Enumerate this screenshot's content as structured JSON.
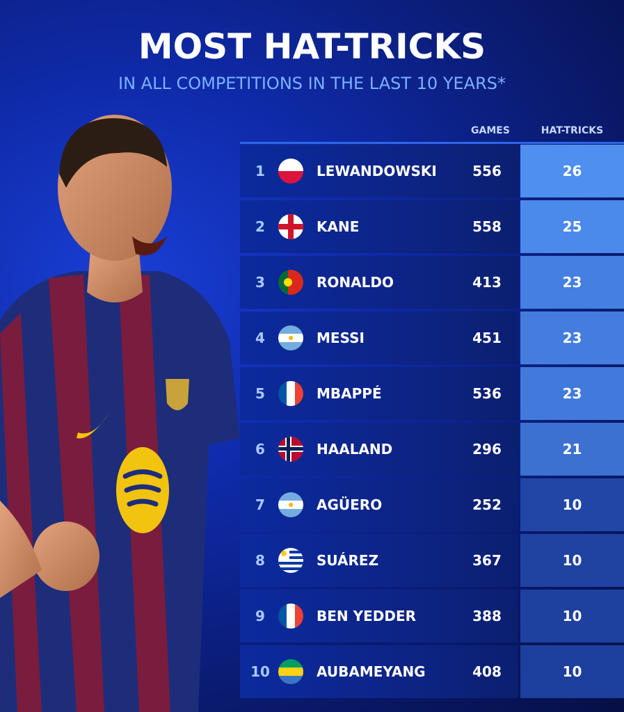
{
  "header": {
    "title": "MOST HAT-TRICKS",
    "subtitle": "IN ALL COMPETITIONS IN THE LAST 10 YEARS*"
  },
  "columns": {
    "games": "GAMES",
    "hat_tricks": "HAT-TRICKS"
  },
  "colors": {
    "accent": "#7ab2ff",
    "hat_bar_top": "#4f8ff0",
    "hat_bar_bottom": "#1d3f9e"
  },
  "chart_data": {
    "type": "table",
    "title": "MOST HAT-TRICKS",
    "subtitle": "IN ALL COMPETITIONS IN THE LAST 10 YEARS*",
    "columns": [
      "",
      "",
      "",
      "GAMES",
      "HAT-TRICKS"
    ],
    "rows": [
      {
        "rank": "1",
        "flag": "poland-flag-icon",
        "name": "LEWANDOWSKI",
        "games": 556,
        "hat_tricks": 26
      },
      {
        "rank": "2",
        "flag": "england-flag-icon",
        "name": "KANE",
        "games": 558,
        "hat_tricks": 25
      },
      {
        "rank": "3",
        "flag": "portugal-flag-icon",
        "name": "RONALDO",
        "games": 413,
        "hat_tricks": 23
      },
      {
        "rank": "4",
        "flag": "argentina-flag-icon",
        "name": "MESSI",
        "games": 451,
        "hat_tricks": 23
      },
      {
        "rank": "5",
        "flag": "france-flag-icon",
        "name": "MBAPPÉ",
        "games": 536,
        "hat_tricks": 23
      },
      {
        "rank": "6",
        "flag": "norway-flag-icon",
        "name": "HAALAND",
        "games": 296,
        "hat_tricks": 21
      },
      {
        "rank": "7",
        "flag": "argentina-flag-icon",
        "name": "AGÜERO",
        "games": 252,
        "hat_tricks": 10
      },
      {
        "rank": "8",
        "flag": "uruguay-flag-icon",
        "name": "SUÁREZ",
        "games": 367,
        "hat_tricks": 10
      },
      {
        "rank": "9",
        "flag": "france-flag-icon",
        "name": "BEN YEDDER",
        "games": 388,
        "hat_tricks": 10
      },
      {
        "rank": "10",
        "flag": "gabon-flag-icon",
        "name": "AUBAMEYANG",
        "games": 408,
        "hat_tricks": 10
      }
    ]
  }
}
